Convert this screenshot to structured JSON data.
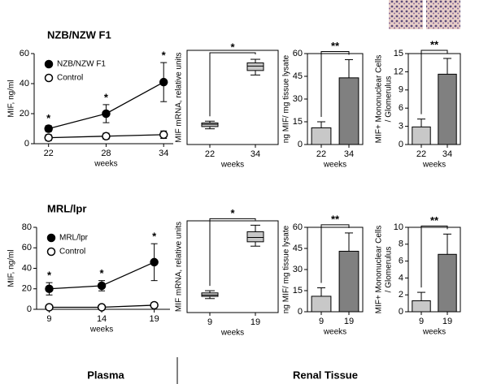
{
  "chart_data": [
    {
      "type": "line",
      "title": "NZB/NZW F1",
      "x": [
        22,
        28,
        34
      ],
      "xlim": [
        20.5,
        35
      ],
      "xticks": [
        22,
        28,
        34
      ],
      "ylim": [
        0,
        60
      ],
      "yticks": [
        0,
        20,
        40,
        60
      ],
      "xlabel": "weeks",
      "ylabel": "MIF, ng/ml",
      "series": [
        {
          "name": "NZB/NZW F1",
          "color": "#000000",
          "values": [
            10,
            20,
            41
          ],
          "errors": [
            2,
            6,
            13
          ],
          "annotations": [
            "*",
            "*",
            "*"
          ]
        },
        {
          "name": "Control",
          "color": "#ffffff",
          "values": [
            4,
            5,
            6
          ],
          "errors": [
            2,
            2,
            2.5
          ]
        }
      ]
    },
    {
      "type": "box",
      "categories": [
        "22",
        "34"
      ],
      "ylim": [
        0,
        2.1
      ],
      "xlabel": "weeks",
      "ylabel": "MIF mRNA, relative units",
      "color": "#c8c8c8",
      "boxes": {
        "whisker_low": [
          0.35,
          1.55
        ],
        "q1": [
          0.4,
          1.65
        ],
        "median": [
          0.45,
          1.75
        ],
        "q3": [
          0.48,
          1.82
        ],
        "whisker_high": [
          0.52,
          1.9
        ]
      },
      "annotation": "*"
    },
    {
      "type": "bar",
      "categories": [
        "22",
        "34"
      ],
      "values": [
        11,
        44
      ],
      "errors": [
        4,
        12
      ],
      "colors": [
        "#c8c8c8",
        "#808080"
      ],
      "ylim": [
        0,
        60
      ],
      "yticks": [
        0,
        15,
        30,
        45,
        60
      ],
      "xlabel": "weeks",
      "ylabel": "ng MIF/ mg tissue lysate",
      "annotation": "**"
    },
    {
      "type": "bar",
      "categories": [
        "22",
        "34"
      ],
      "values": [
        2.9,
        11.6
      ],
      "errors": [
        1.3,
        2.6
      ],
      "colors": [
        "#c8c8c8",
        "#808080"
      ],
      "ylim": [
        0,
        15
      ],
      "yticks": [
        0,
        3,
        6,
        9,
        12,
        15
      ],
      "xlabel": "weeks",
      "ylabel": [
        "MIF+ Mononuclear Cells",
        "/ Glomerulus"
      ],
      "annotation": "**"
    },
    {
      "type": "line",
      "title": "MRL/lpr",
      "x": [
        9,
        14,
        19
      ],
      "xlim": [
        7.8,
        20.5
      ],
      "xticks": [
        9,
        14,
        19
      ],
      "ylim": [
        0,
        80
      ],
      "yticks": [
        0,
        20,
        40,
        60,
        80
      ],
      "xlabel": "weeks",
      "ylabel": "MIF, ng/ml",
      "series": [
        {
          "name": "MRL/lpr",
          "color": "#000000",
          "values": [
            20,
            23,
            46
          ],
          "errors": [
            6,
            5,
            18
          ],
          "annotations": [
            "*",
            "*",
            "*"
          ]
        },
        {
          "name": "Control",
          "color": "#ffffff",
          "values": [
            2,
            2,
            4
          ],
          "errors": [
            2,
            2,
            2.5
          ]
        }
      ]
    },
    {
      "type": "box",
      "categories": [
        "9",
        "19"
      ],
      "ylim": [
        0,
        2.1
      ],
      "xlabel": "weeks",
      "ylabel": "MIF mRNA, relative units",
      "color": "#c8c8c8",
      "boxes": {
        "whisker_low": [
          0.32,
          1.52
        ],
        "q1": [
          0.37,
          1.62
        ],
        "median": [
          0.4,
          1.72
        ],
        "q3": [
          0.45,
          1.85
        ],
        "whisker_high": [
          0.5,
          2.0
        ]
      },
      "annotation": "*"
    },
    {
      "type": "bar",
      "categories": [
        "9",
        "19"
      ],
      "values": [
        11,
        43
      ],
      "errors": [
        6,
        13
      ],
      "colors": [
        "#c8c8c8",
        "#808080"
      ],
      "ylim": [
        0,
        60
      ],
      "yticks": [
        0,
        15,
        30,
        45,
        60
      ],
      "xlabel": "weeks",
      "ylabel": "ng MIF/ mg tissue lysate",
      "annotation": "**"
    },
    {
      "type": "bar",
      "categories": [
        "9",
        "19"
      ],
      "values": [
        1.3,
        6.8
      ],
      "errors": [
        1.0,
        2.4
      ],
      "colors": [
        "#c8c8c8",
        "#808080"
      ],
      "ylim": [
        0,
        10
      ],
      "yticks": [
        0,
        2,
        4,
        6,
        8,
        10
      ],
      "xlabel": "weeks",
      "ylabel": [
        "MIF+ Mononuclear Cells",
        "/ Glomerulus"
      ],
      "annotation": "**"
    }
  ],
  "footer": [
    "Plasma",
    "Renal Tissue"
  ]
}
